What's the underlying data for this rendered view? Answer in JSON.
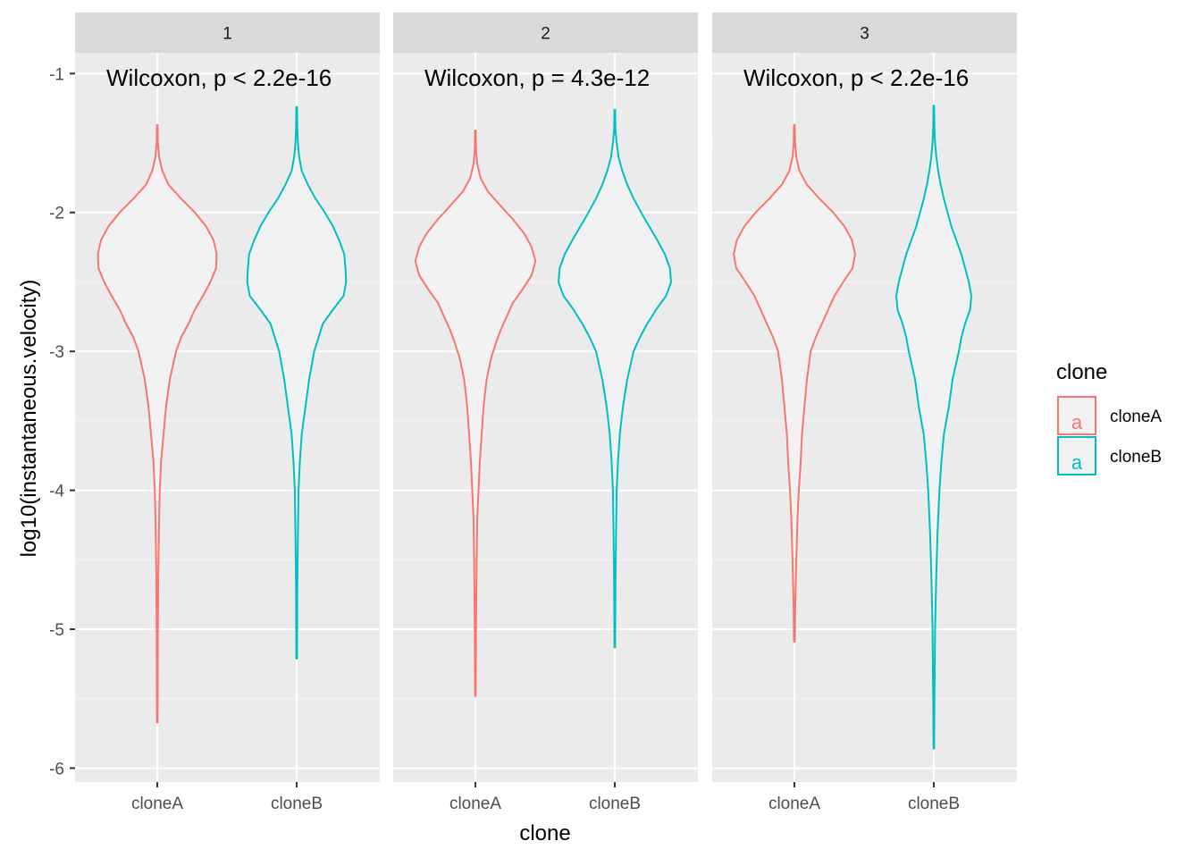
{
  "chart_data": {
    "type": "violin",
    "xlabel": "clone",
    "ylabel": "log10(instantaneous.velocity)",
    "ylim": [
      -6.1,
      -0.85
    ],
    "yticks": [
      -1,
      -2,
      -3,
      -4,
      -5,
      -6
    ],
    "ytick_labels": [
      "-1",
      "-2",
      "-3",
      "-4",
      "-5",
      "-6"
    ],
    "categories": [
      "cloneA",
      "cloneB"
    ],
    "grid": true,
    "legend": {
      "title": "clone",
      "position": "right",
      "key_glyph": "a",
      "entries": [
        {
          "name": "cloneA",
          "color": "#F8766D"
        },
        {
          "name": "cloneB",
          "color": "#00BFC4"
        }
      ]
    },
    "facets": [
      {
        "label": "1",
        "annotation": "Wilcoxon, p < 2.2e-16",
        "violins": [
          {
            "category": "cloneA",
            "color": "#F8766D",
            "min": -5.67,
            "max": -1.37,
            "profile": [
              [
                -1.37,
                0.005
              ],
              [
                -1.5,
                0.01
              ],
              [
                -1.6,
                0.03
              ],
              [
                -1.7,
                0.08
              ],
              [
                -1.8,
                0.18
              ],
              [
                -1.9,
                0.38
              ],
              [
                -2.0,
                0.6
              ],
              [
                -2.1,
                0.78
              ],
              [
                -2.2,
                0.9
              ],
              [
                -2.3,
                0.95
              ],
              [
                -2.4,
                0.94
              ],
              [
                -2.5,
                0.85
              ],
              [
                -2.6,
                0.73
              ],
              [
                -2.7,
                0.6
              ],
              [
                -2.8,
                0.5
              ],
              [
                -2.9,
                0.38
              ],
              [
                -3.0,
                0.3
              ],
              [
                -3.1,
                0.25
              ],
              [
                -3.2,
                0.2
              ],
              [
                -3.4,
                0.14
              ],
              [
                -3.6,
                0.1
              ],
              [
                -3.8,
                0.06
              ],
              [
                -4.0,
                0.04
              ],
              [
                -4.3,
                0.025
              ],
              [
                -4.6,
                0.015
              ],
              [
                -5.0,
                0.01
              ],
              [
                -5.67,
                0.005
              ]
            ]
          },
          {
            "category": "cloneB",
            "color": "#00BFC4",
            "min": -5.21,
            "max": -1.24,
            "profile": [
              [
                -1.24,
                0.005
              ],
              [
                -1.4,
                0.01
              ],
              [
                -1.5,
                0.02
              ],
              [
                -1.6,
                0.04
              ],
              [
                -1.7,
                0.08
              ],
              [
                -1.8,
                0.18
              ],
              [
                -1.9,
                0.3
              ],
              [
                -2.0,
                0.45
              ],
              [
                -2.1,
                0.58
              ],
              [
                -2.2,
                0.68
              ],
              [
                -2.3,
                0.76
              ],
              [
                -2.4,
                0.78
              ],
              [
                -2.5,
                0.79
              ],
              [
                -2.6,
                0.75
              ],
              [
                -2.7,
                0.58
              ],
              [
                -2.8,
                0.42
              ],
              [
                -2.9,
                0.35
              ],
              [
                -3.0,
                0.28
              ],
              [
                -3.2,
                0.2
              ],
              [
                -3.4,
                0.14
              ],
              [
                -3.6,
                0.08
              ],
              [
                -3.8,
                0.05
              ],
              [
                -4.0,
                0.03
              ],
              [
                -4.3,
                0.02
              ],
              [
                -4.7,
                0.01
              ],
              [
                -5.21,
                0.005
              ]
            ]
          }
        ]
      },
      {
        "label": "2",
        "annotation": "Wilcoxon, p = 4.3e-12",
        "violins": [
          {
            "category": "cloneA",
            "color": "#F8766D",
            "min": -5.48,
            "max": -1.41,
            "profile": [
              [
                -1.41,
                0.005
              ],
              [
                -1.55,
                0.01
              ],
              [
                -1.65,
                0.03
              ],
              [
                -1.75,
                0.08
              ],
              [
                -1.85,
                0.2
              ],
              [
                -1.95,
                0.4
              ],
              [
                -2.05,
                0.6
              ],
              [
                -2.15,
                0.78
              ],
              [
                -2.25,
                0.9
              ],
              [
                -2.35,
                0.96
              ],
              [
                -2.45,
                0.9
              ],
              [
                -2.55,
                0.76
              ],
              [
                -2.65,
                0.6
              ],
              [
                -2.75,
                0.5
              ],
              [
                -2.85,
                0.4
              ],
              [
                -2.95,
                0.32
              ],
              [
                -3.05,
                0.25
              ],
              [
                -3.2,
                0.18
              ],
              [
                -3.4,
                0.13
              ],
              [
                -3.6,
                0.1
              ],
              [
                -3.8,
                0.07
              ],
              [
                -4.0,
                0.05
              ],
              [
                -4.2,
                0.03
              ],
              [
                -4.5,
                0.02
              ],
              [
                -5.0,
                0.01
              ],
              [
                -5.48,
                0.005
              ]
            ]
          },
          {
            "category": "cloneB",
            "color": "#00BFC4",
            "min": -5.13,
            "max": -1.26,
            "profile": [
              [
                -1.26,
                0.005
              ],
              [
                -1.4,
                0.01
              ],
              [
                -1.5,
                0.03
              ],
              [
                -1.6,
                0.06
              ],
              [
                -1.7,
                0.12
              ],
              [
                -1.8,
                0.2
              ],
              [
                -1.9,
                0.3
              ],
              [
                -2.0,
                0.42
              ],
              [
                -2.1,
                0.55
              ],
              [
                -2.2,
                0.68
              ],
              [
                -2.3,
                0.8
              ],
              [
                -2.4,
                0.88
              ],
              [
                -2.5,
                0.9
              ],
              [
                -2.6,
                0.82
              ],
              [
                -2.7,
                0.66
              ],
              [
                -2.8,
                0.52
              ],
              [
                -2.9,
                0.4
              ],
              [
                -3.0,
                0.3
              ],
              [
                -3.2,
                0.2
              ],
              [
                -3.4,
                0.13
              ],
              [
                -3.6,
                0.08
              ],
              [
                -3.8,
                0.05
              ],
              [
                -4.0,
                0.03
              ],
              [
                -4.3,
                0.02
              ],
              [
                -4.7,
                0.01
              ],
              [
                -5.13,
                0.005
              ]
            ]
          }
        ]
      },
      {
        "label": "3",
        "annotation": "Wilcoxon, p < 2.2e-16",
        "violins": [
          {
            "category": "cloneA",
            "color": "#F8766D",
            "min": -5.09,
            "max": -1.37,
            "profile": [
              [
                -1.37,
                0.005
              ],
              [
                -1.5,
                0.01
              ],
              [
                -1.6,
                0.03
              ],
              [
                -1.7,
                0.08
              ],
              [
                -1.8,
                0.2
              ],
              [
                -1.9,
                0.4
              ],
              [
                -2.0,
                0.62
              ],
              [
                -2.1,
                0.8
              ],
              [
                -2.2,
                0.92
              ],
              [
                -2.3,
                0.97
              ],
              [
                -2.4,
                0.93
              ],
              [
                -2.5,
                0.78
              ],
              [
                -2.6,
                0.64
              ],
              [
                -2.7,
                0.54
              ],
              [
                -2.8,
                0.44
              ],
              [
                -2.9,
                0.34
              ],
              [
                -3.0,
                0.26
              ],
              [
                -3.2,
                0.2
              ],
              [
                -3.4,
                0.16
              ],
              [
                -3.6,
                0.12
              ],
              [
                -3.8,
                0.1
              ],
              [
                -4.0,
                0.07
              ],
              [
                -4.2,
                0.05
              ],
              [
                -4.5,
                0.03
              ],
              [
                -4.8,
                0.015
              ],
              [
                -5.09,
                0.005
              ]
            ]
          },
          {
            "category": "cloneB",
            "color": "#00BFC4",
            "min": -5.86,
            "max": -1.23,
            "profile": [
              [
                -1.23,
                0.005
              ],
              [
                -1.4,
                0.01
              ],
              [
                -1.5,
                0.02
              ],
              [
                -1.6,
                0.04
              ],
              [
                -1.7,
                0.07
              ],
              [
                -1.8,
                0.11
              ],
              [
                -1.9,
                0.16
              ],
              [
                -2.0,
                0.22
              ],
              [
                -2.1,
                0.28
              ],
              [
                -2.2,
                0.36
              ],
              [
                -2.3,
                0.44
              ],
              [
                -2.4,
                0.5
              ],
              [
                -2.5,
                0.56
              ],
              [
                -2.6,
                0.6
              ],
              [
                -2.7,
                0.58
              ],
              [
                -2.8,
                0.5
              ],
              [
                -2.9,
                0.44
              ],
              [
                -3.0,
                0.4
              ],
              [
                -3.2,
                0.3
              ],
              [
                -3.4,
                0.24
              ],
              [
                -3.6,
                0.16
              ],
              [
                -3.8,
                0.12
              ],
              [
                -4.0,
                0.09
              ],
              [
                -4.3,
                0.06
              ],
              [
                -4.6,
                0.04
              ],
              [
                -5.0,
                0.02
              ],
              [
                -5.5,
                0.01
              ],
              [
                -5.86,
                0.005
              ]
            ]
          }
        ]
      }
    ]
  }
}
